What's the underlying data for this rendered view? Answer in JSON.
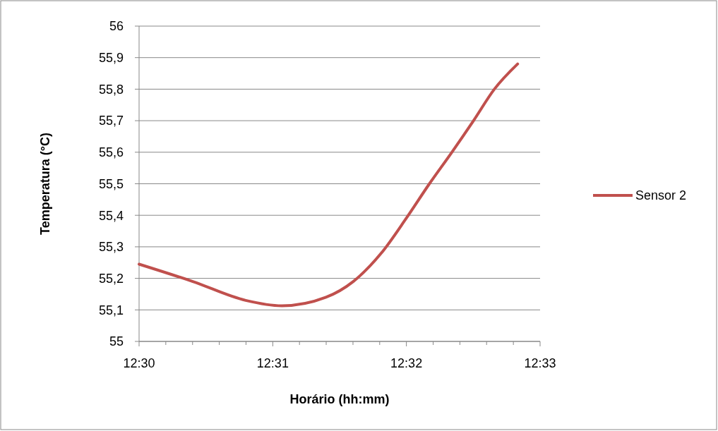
{
  "chart_data": {
    "type": "line",
    "xlabel": "Horário  (hh:mm)",
    "ylabel": "Temperatura  (°C)",
    "x": [
      12.5,
      12.5067,
      12.5133,
      12.5178,
      12.5233,
      12.5267,
      12.5302,
      12.5333,
      12.5362,
      12.539,
      12.5417,
      12.5443,
      12.5472
    ],
    "series": [
      {
        "name": "Sensor 2",
        "color": "#c0504d",
        "values": [
          55.245,
          55.19,
          55.13,
          55.113,
          55.14,
          55.19,
          55.28,
          55.39,
          55.5,
          55.6,
          55.7,
          55.8,
          55.88
        ]
      }
    ],
    "xlim": [
      12.5,
      12.55
    ],
    "xticks": [
      {
        "value": 12.5,
        "label": "12:30"
      },
      {
        "value": 12.50333,
        "label": null
      },
      {
        "value": 12.50667,
        "label": null
      },
      {
        "value": 12.51,
        "label": null
      },
      {
        "value": 12.51333,
        "label": null
      },
      {
        "value": 12.51667,
        "label": "12:31"
      },
      {
        "value": 12.52,
        "label": null
      },
      {
        "value": 12.52333,
        "label": null
      },
      {
        "value": 12.52667,
        "label": null
      },
      {
        "value": 12.53,
        "label": null
      },
      {
        "value": 12.53333,
        "label": "12:32"
      },
      {
        "value": 12.53667,
        "label": null
      },
      {
        "value": 12.54,
        "label": null
      },
      {
        "value": 12.54333,
        "label": null
      },
      {
        "value": 12.54667,
        "label": null
      },
      {
        "value": 12.55,
        "label": "12:33"
      }
    ],
    "ylim": [
      55,
      56
    ],
    "yticks": [
      55,
      {
        "value": 55.1,
        "label": "55,1"
      },
      {
        "value": 55.2,
        "label": "55,2"
      },
      {
        "value": 55.3,
        "label": "55,3"
      },
      {
        "value": 55.4,
        "label": "55,4"
      },
      {
        "value": 55.5,
        "label": "55,5"
      },
      {
        "value": 55.6,
        "label": "55,6"
      },
      {
        "value": 55.7,
        "label": "55,7"
      },
      {
        "value": 55.8,
        "label": "55,8"
      },
      {
        "value": 55.9,
        "label": "55,9"
      },
      56
    ],
    "grid": "y",
    "legend": "right",
    "marker": "none",
    "line_style": "solid"
  }
}
